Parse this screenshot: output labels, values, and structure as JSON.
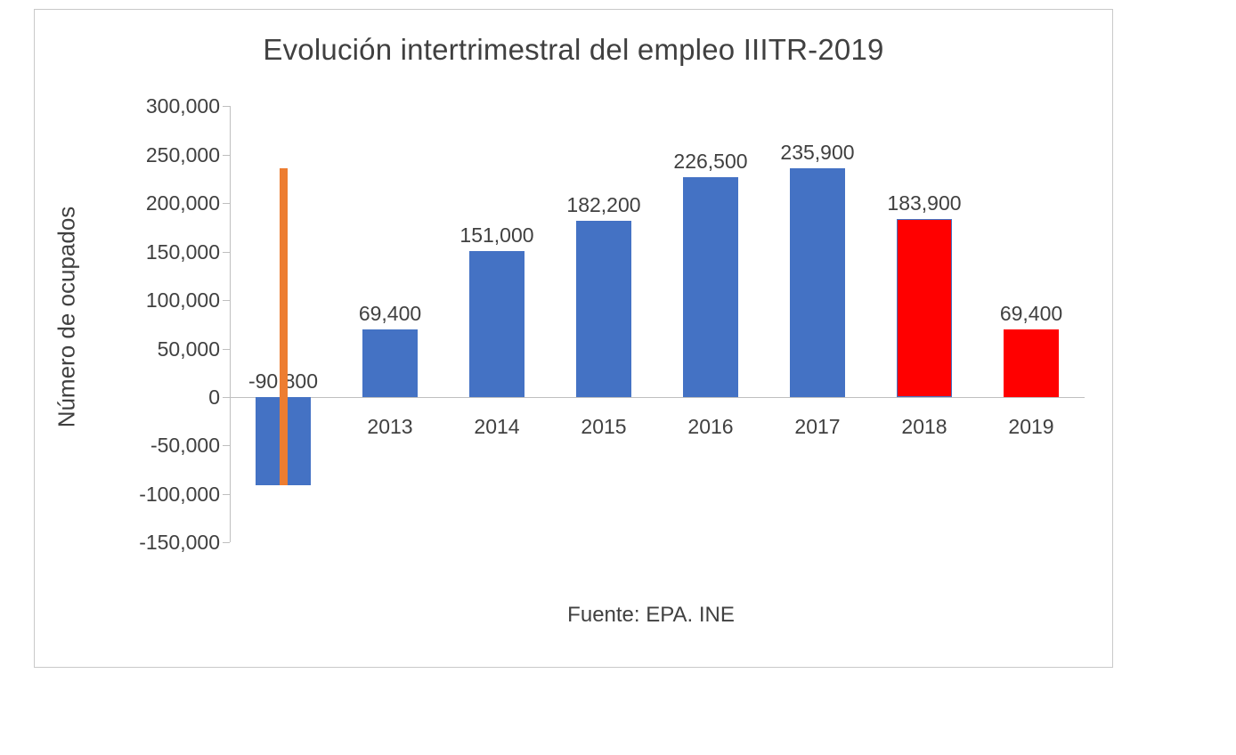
{
  "chart_data": {
    "type": "bar",
    "title": "Evolución intertrimestral del empleo IIITR-2019",
    "ylabel": "Número de ocupados",
    "source_note": "Fuente: EPA. INE",
    "categories": [
      "",
      "2013",
      "2014",
      "2015",
      "2016",
      "2017",
      "2018",
      "2019"
    ],
    "values": [
      -90800,
      69400,
      151000,
      182200,
      226500,
      235900,
      183900,
      69400
    ],
    "value_labels": [
      "-90,800",
      "69,400",
      "151,000",
      "182,200",
      "226,500",
      "235,900",
      "183,900",
      "69,400"
    ],
    "bar_colors": [
      "#4472C4",
      "#4472C4",
      "#4472C4",
      "#4472C4",
      "#4472C4",
      "#4472C4",
      "#FF0000",
      "#FF0000"
    ],
    "bar_borders": [
      "none",
      "none",
      "none",
      "none",
      "none",
      "none",
      "#4472C4",
      "none"
    ],
    "ylim": [
      -150000,
      300000
    ],
    "ytick_step": 50000,
    "yticks": [
      {
        "value": 300000,
        "label": "300,000"
      },
      {
        "value": 250000,
        "label": "250,000"
      },
      {
        "value": 200000,
        "label": "200,000"
      },
      {
        "value": 150000,
        "label": "150,000"
      },
      {
        "value": 100000,
        "label": "100,000"
      },
      {
        "value": 50000,
        "label": "50,000"
      },
      {
        "value": 0,
        "label": "0"
      },
      {
        "value": -50000,
        "label": "-50,000"
      },
      {
        "value": -100000,
        "label": "-100,000"
      },
      {
        "value": -150000,
        "label": "-150,000"
      }
    ],
    "grid": false,
    "legend": "none",
    "range_marker": {
      "category_index": 0,
      "value_top": 235900,
      "value_bottom": -90800,
      "color": "#ED7D31"
    }
  },
  "colors": {
    "bar_blue": "#4472C4",
    "bar_red": "#FF0000",
    "marker_orange": "#ED7D31",
    "text": "#404040",
    "axis": "#BFBFBF",
    "frame_border": "#C9C9C9",
    "background": "#FFFFFF"
  }
}
